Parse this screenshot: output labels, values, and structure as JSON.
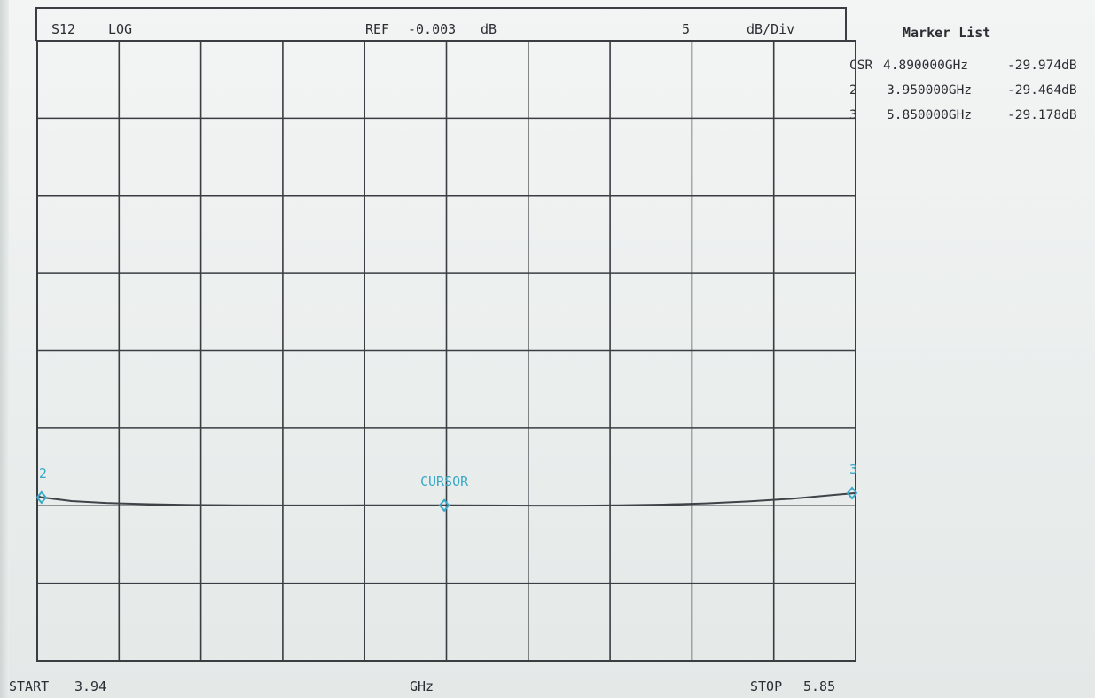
{
  "header": {
    "param": "S12",
    "format": "LOG",
    "ref_label": "REF",
    "ref_value": "-0.003",
    "ref_unit": "dB",
    "scale_value": "5",
    "scale_unit": "dB/Div"
  },
  "marker_list": {
    "title": "Marker List",
    "rows": [
      {
        "id": "CSR",
        "freq": "4.890000GHz",
        "value": "-29.974dB"
      },
      {
        "id": "2",
        "freq": "3.950000GHz",
        "value": "-29.464dB"
      },
      {
        "id": "3",
        "freq": "5.850000GHz",
        "value": "-29.178dB"
      }
    ]
  },
  "footer": {
    "start_label": "START",
    "start_value": "3.94",
    "center_unit": "GHz",
    "stop_label": "STOP",
    "stop_value": "5.85"
  },
  "chart_data": {
    "type": "line",
    "grid": true,
    "x_divisions": 10,
    "y_divisions": 8,
    "xlim": [
      3.94,
      5.85
    ],
    "x_unit": "GHz",
    "ylim": [
      -40,
      0
    ],
    "y_unit": "dB",
    "series": [
      {
        "x": [
          3.94,
          3.95,
          4.02,
          4.1,
          4.2,
          4.3,
          4.4,
          4.5,
          4.6,
          4.7,
          4.8,
          4.89,
          5.0,
          5.1,
          5.2,
          5.3,
          5.4,
          5.5,
          5.6,
          5.7,
          5.8,
          5.85
        ],
        "y": [
          -29.35,
          -29.46,
          -29.7,
          -29.82,
          -29.9,
          -29.95,
          -29.97,
          -29.98,
          -29.98,
          -29.97,
          -29.97,
          -29.97,
          -29.98,
          -29.99,
          -29.99,
          -29.97,
          -29.93,
          -29.85,
          -29.72,
          -29.55,
          -29.3,
          -29.18
        ]
      }
    ],
    "markers": [
      {
        "label": "2",
        "x": 3.95,
        "y": -29.464
      },
      {
        "label": "CURSOR",
        "x": 4.89,
        "y": -29.974
      },
      {
        "label": "3",
        "x": 5.85,
        "y": -29.178
      }
    ],
    "colors": {
      "grid": "#3a3d42",
      "trace": "#3f4247",
      "marker": "#3aa8c8"
    }
  }
}
